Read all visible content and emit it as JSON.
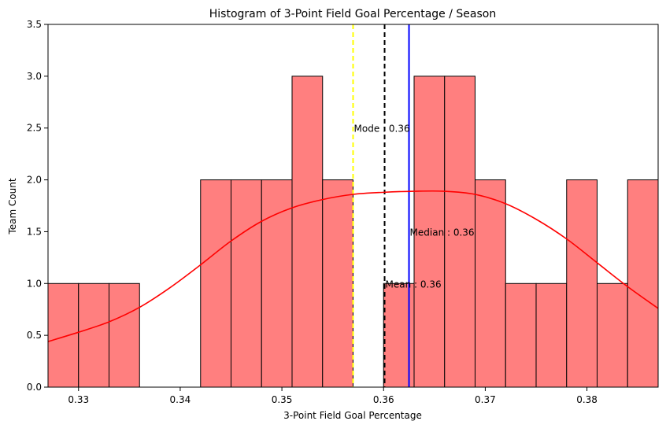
{
  "chart_data": {
    "type": "bar",
    "title": "Histogram of 3-Point Field Goal Percentage / Season",
    "xlabel": "3-Point Field Goal Percentage",
    "ylabel": "Team Count",
    "xlim": [
      0.327,
      0.387
    ],
    "ylim": [
      0,
      3.5
    ],
    "x_ticks": [
      0.33,
      0.34,
      0.35,
      0.36,
      0.37,
      0.38
    ],
    "x_tick_labels": [
      "0.33",
      "0.34",
      "0.35",
      "0.36",
      "0.37",
      "0.38"
    ],
    "y_ticks": [
      0,
      0.5,
      1,
      1.5,
      2,
      2.5,
      3,
      3.5
    ],
    "y_tick_labels": [
      "0.0",
      "0.5",
      "1.0",
      "1.5",
      "2.0",
      "2.5",
      "3.0",
      "3.5"
    ],
    "bins": [
      {
        "x0": 0.327,
        "x1": 0.33,
        "count": 1
      },
      {
        "x0": 0.33,
        "x1": 0.333,
        "count": 1
      },
      {
        "x0": 0.333,
        "x1": 0.336,
        "count": 1
      },
      {
        "x0": 0.336,
        "x1": 0.339,
        "count": 0
      },
      {
        "x0": 0.339,
        "x1": 0.342,
        "count": 0
      },
      {
        "x0": 0.342,
        "x1": 0.345,
        "count": 2
      },
      {
        "x0": 0.345,
        "x1": 0.348,
        "count": 2
      },
      {
        "x0": 0.348,
        "x1": 0.351,
        "count": 2
      },
      {
        "x0": 0.351,
        "x1": 0.354,
        "count": 3
      },
      {
        "x0": 0.354,
        "x1": 0.357,
        "count": 2
      },
      {
        "x0": 0.357,
        "x1": 0.36,
        "count": 0
      },
      {
        "x0": 0.36,
        "x1": 0.363,
        "count": 1
      },
      {
        "x0": 0.363,
        "x1": 0.366,
        "count": 3
      },
      {
        "x0": 0.366,
        "x1": 0.369,
        "count": 3
      },
      {
        "x0": 0.369,
        "x1": 0.372,
        "count": 2
      },
      {
        "x0": 0.372,
        "x1": 0.375,
        "count": 1
      },
      {
        "x0": 0.375,
        "x1": 0.378,
        "count": 1
      },
      {
        "x0": 0.378,
        "x1": 0.381,
        "count": 2
      },
      {
        "x0": 0.381,
        "x1": 0.384,
        "count": 1
      },
      {
        "x0": 0.384,
        "x1": 0.387,
        "count": 2
      }
    ],
    "kde": {
      "x": [
        0.327,
        0.33,
        0.333,
        0.336,
        0.339,
        0.342,
        0.345,
        0.348,
        0.351,
        0.354,
        0.357,
        0.36,
        0.363,
        0.366,
        0.369,
        0.372,
        0.375,
        0.378,
        0.381,
        0.384,
        0.387
      ],
      "y": [
        0.44,
        0.53,
        0.63,
        0.77,
        0.96,
        1.18,
        1.41,
        1.6,
        1.73,
        1.81,
        1.86,
        1.88,
        1.89,
        1.89,
        1.86,
        1.77,
        1.62,
        1.43,
        1.2,
        0.97,
        0.76
      ]
    },
    "reference_lines": [
      {
        "name": "Mode",
        "x": 0.357,
        "color": "#ffff00",
        "style": "dashed",
        "label": "Mode : 0.36",
        "label_y": 2.5
      },
      {
        "name": "Mean",
        "x": 0.3601,
        "color": "#000000",
        "style": "dashed",
        "label": "Mean : 0.36",
        "label_y": 1.0
      },
      {
        "name": "Median",
        "x": 0.3625,
        "color": "#0000ff",
        "style": "solid",
        "label": "Median : 0.36",
        "label_y": 1.5
      }
    ],
    "colors": {
      "bar_fill": "#ff7f7f",
      "bar_edge": "#000000",
      "kde": "#ff0000"
    },
    "grid": false,
    "legend": "none"
  }
}
